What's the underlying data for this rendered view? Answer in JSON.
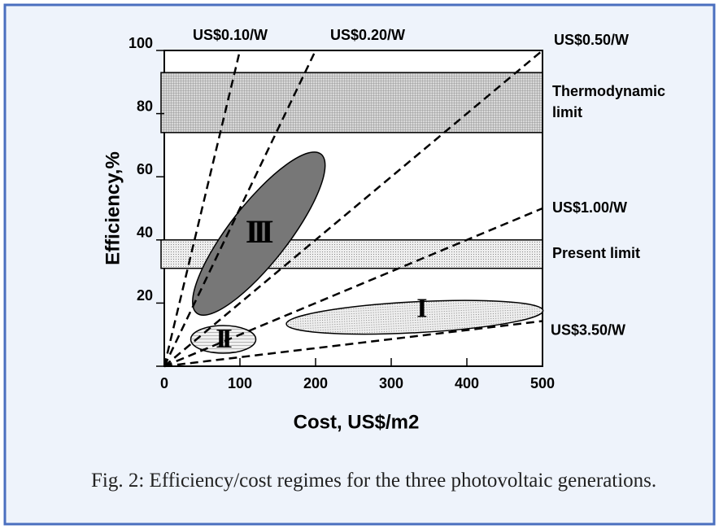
{
  "chart_data": {
    "type": "line",
    "xlabel": "Cost, US$/m2",
    "ylabel": "Efficiency,%",
    "xlim": [
      0,
      500
    ],
    "ylim": [
      0,
      100
    ],
    "xticks": [
      0,
      100,
      200,
      300,
      400,
      500
    ],
    "yticks": [
      0,
      20,
      40,
      60,
      80,
      100
    ],
    "series": [
      {
        "name": "US$0.10/W",
        "color": "#000000",
        "x": [
          0,
          100
        ],
        "values": [
          0,
          100
        ]
      },
      {
        "name": "US$0.20/W",
        "color": "#000000",
        "x": [
          0,
          200
        ],
        "values": [
          0,
          100
        ]
      },
      {
        "name": "US$0.50/W",
        "color": "#000000",
        "x": [
          0,
          500
        ],
        "values": [
          0,
          100
        ]
      },
      {
        "name": "US$1.00/W",
        "color": "#000000",
        "x": [
          0,
          500
        ],
        "values": [
          0,
          50
        ]
      },
      {
        "name": "US$3.50/W",
        "color": "#000000",
        "x": [
          0,
          500
        ],
        "values": [
          0,
          14.3
        ]
      }
    ],
    "bands": [
      {
        "name": [
          "Thermodynamic",
          "limit"
        ],
        "ymin": 74,
        "ymax": 93
      },
      {
        "name": [
          "Present limit"
        ],
        "ymin": 31,
        "ymax": 40
      }
    ],
    "regions": [
      {
        "name": "III",
        "x": 125,
        "y": 42
      },
      {
        "name": "II",
        "x": 78,
        "y": 8.5
      },
      {
        "name": "I",
        "x": 331,
        "y": 15.5
      }
    ],
    "caption": "Fig. 2:  Efficiency/cost regimes for the three photovoltaic generations."
  }
}
